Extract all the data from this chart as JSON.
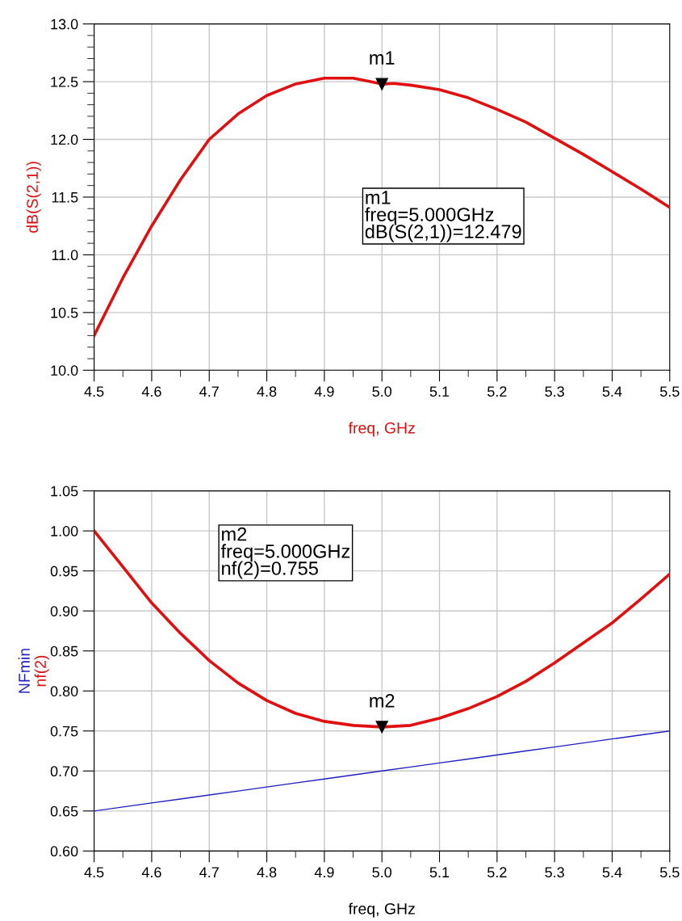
{
  "chart_data": [
    {
      "type": "line",
      "xlabel": "freq, GHz",
      "xlim": [
        4.5,
        5.5
      ],
      "xticks": [
        4.5,
        4.6,
        4.7,
        4.8,
        4.9,
        {
          "value": 5.0,
          "label": "5.0"
        },
        5.1,
        5.2,
        5.3,
        5.4,
        5.5
      ],
      "ylim": [
        10.0,
        13.0
      ],
      "yticks": [
        {
          "value": 10.0,
          "label": "10.0"
        },
        10.5,
        {
          "value": 11.0,
          "label": "11.0"
        },
        11.5,
        {
          "value": 12.0,
          "label": "12.0"
        },
        12.5,
        {
          "value": 13.0,
          "label": "13.0"
        }
      ],
      "grid": true,
      "legend": false,
      "x": [
        4.5,
        4.55,
        4.6,
        4.65,
        4.7,
        4.75,
        4.8,
        4.85,
        4.9,
        4.95,
        4.98,
        5.0,
        5.02,
        5.05,
        5.1,
        5.15,
        5.2,
        5.25,
        5.3,
        5.35,
        5.4,
        5.45,
        5.5
      ],
      "series": [
        {
          "name": "dB(S(2,1))",
          "color": "#e01010",
          "values": [
            10.3,
            10.8,
            11.25,
            11.65,
            12.0,
            12.22,
            12.38,
            12.48,
            12.53,
            12.53,
            12.5,
            12.479,
            12.485,
            12.47,
            12.43,
            12.36,
            12.26,
            12.15,
            12.01,
            11.87,
            11.72,
            11.57,
            11.41
          ]
        }
      ],
      "annotations": [
        {
          "text": "m1",
          "x": 5.0,
          "y": 12.479
        },
        "m1\nfreq=5.000GHz\ndB(S(2,1))=12.479"
      ]
    },
    {
      "type": "line",
      "xlabel": "freq, GHz",
      "xlim": [
        4.5,
        5.5
      ],
      "xticks": [
        4.5,
        4.6,
        4.7,
        4.8,
        4.9,
        {
          "value": 5.0,
          "label": "5.0"
        },
        5.1,
        5.2,
        5.3,
        5.4,
        5.5
      ],
      "ylim": [
        0.6,
        1.05
      ],
      "yticks": [
        {
          "value": 0.6,
          "label": "0.60"
        },
        0.65,
        {
          "value": 0.7,
          "label": "0.70"
        },
        0.75,
        {
          "value": 0.8,
          "label": "0.80"
        },
        0.85,
        {
          "value": 0.9,
          "label": "0.90"
        },
        0.95,
        {
          "value": 1.0,
          "label": "1.00"
        },
        1.05
      ],
      "grid": true,
      "legend": false,
      "x": [
        4.5,
        4.55,
        4.6,
        4.65,
        4.7,
        4.75,
        4.8,
        4.85,
        4.9,
        4.95,
        5.0,
        5.05,
        5.1,
        5.15,
        5.2,
        5.25,
        5.3,
        5.35,
        5.4,
        5.45,
        5.5
      ],
      "series": [
        {
          "name": "NFmin",
          "color": "#2020c0",
          "values": [
            0.65,
            0.655,
            0.66,
            0.665,
            0.67,
            0.675,
            0.68,
            0.685,
            0.69,
            0.695,
            0.7,
            0.705,
            0.71,
            0.715,
            0.72,
            0.725,
            0.73,
            0.735,
            0.74,
            0.745,
            0.75
          ]
        },
        {
          "name": "nf(2)",
          "color": "#e01010",
          "values": [
            1.0,
            0.955,
            0.91,
            0.872,
            0.838,
            0.81,
            0.788,
            0.772,
            0.762,
            0.757,
            0.755,
            0.757,
            0.766,
            0.778,
            0.793,
            0.812,
            0.835,
            0.86,
            0.885,
            0.915,
            0.946
          ]
        }
      ],
      "annotations": [
        {
          "text": "m2",
          "x": 5.0,
          "y": 0.755
        },
        "m2\nfreq=5.000GHz\nnf(2)=0.755"
      ]
    }
  ]
}
